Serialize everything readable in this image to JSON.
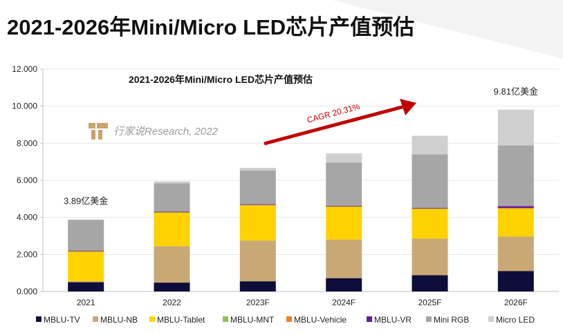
{
  "page": {
    "title": "2021-2026年Mini/Micro LED芯片产值预估"
  },
  "watermark": {
    "text": "行家说Research, 2022",
    "logo_color": "#c9a46a"
  },
  "chart_data": {
    "type": "bar",
    "stacked": true,
    "title": "2021-2026年Mini/Micro LED芯片产值预估",
    "xlabel": "",
    "ylabel": "",
    "ylim": [
      0,
      12
    ],
    "yticks": [
      "0.000",
      "2.000",
      "4.000",
      "6.000",
      "8.000",
      "10.000",
      "12.000"
    ],
    "categories": [
      "2021",
      "2022",
      "2023F",
      "2024F",
      "2025F",
      "2026F"
    ],
    "series": [
      {
        "name": "MBLU-TV",
        "color": "#0d0d3a",
        "values": [
          0.5,
          0.48,
          0.55,
          0.72,
          0.88,
          1.1
        ]
      },
      {
        "name": "MBLU-NB",
        "color": "#c9a875",
        "values": [
          0.05,
          1.97,
          2.2,
          2.08,
          1.97,
          1.87
        ]
      },
      {
        "name": "MBLU-Tablet",
        "color": "#ffd200",
        "values": [
          1.6,
          1.8,
          1.9,
          1.77,
          1.6,
          1.5
        ]
      },
      {
        "name": "MBLU-MNT",
        "color": "#8bc34a",
        "values": [
          0.02,
          0.02,
          0.02,
          0.02,
          0.02,
          0.02
        ]
      },
      {
        "name": "MBLU-Vehicle",
        "color": "#f07d1a",
        "values": [
          0.02,
          0.02,
          0.02,
          0.02,
          0.02,
          0.02
        ]
      },
      {
        "name": "MBLU-VR",
        "color": "#6a1b9a",
        "values": [
          0.02,
          0.02,
          0.02,
          0.02,
          0.03,
          0.1
        ]
      },
      {
        "name": "Mini RGB",
        "color": "#a6a6a6",
        "values": [
          1.65,
          1.53,
          1.81,
          2.32,
          2.88,
          3.28
        ]
      },
      {
        "name": "Micro LED",
        "color": "#cfcfcf",
        "values": [
          0.03,
          0.1,
          0.15,
          0.5,
          1.0,
          1.92
        ]
      }
    ],
    "annotations": [
      {
        "category": "2021",
        "text": "3.89亿美金"
      },
      {
        "category": "2026F",
        "text": "9.81亿美金"
      }
    ],
    "trend_label": "CAGR 20.31%",
    "legend_position": "bottom"
  }
}
